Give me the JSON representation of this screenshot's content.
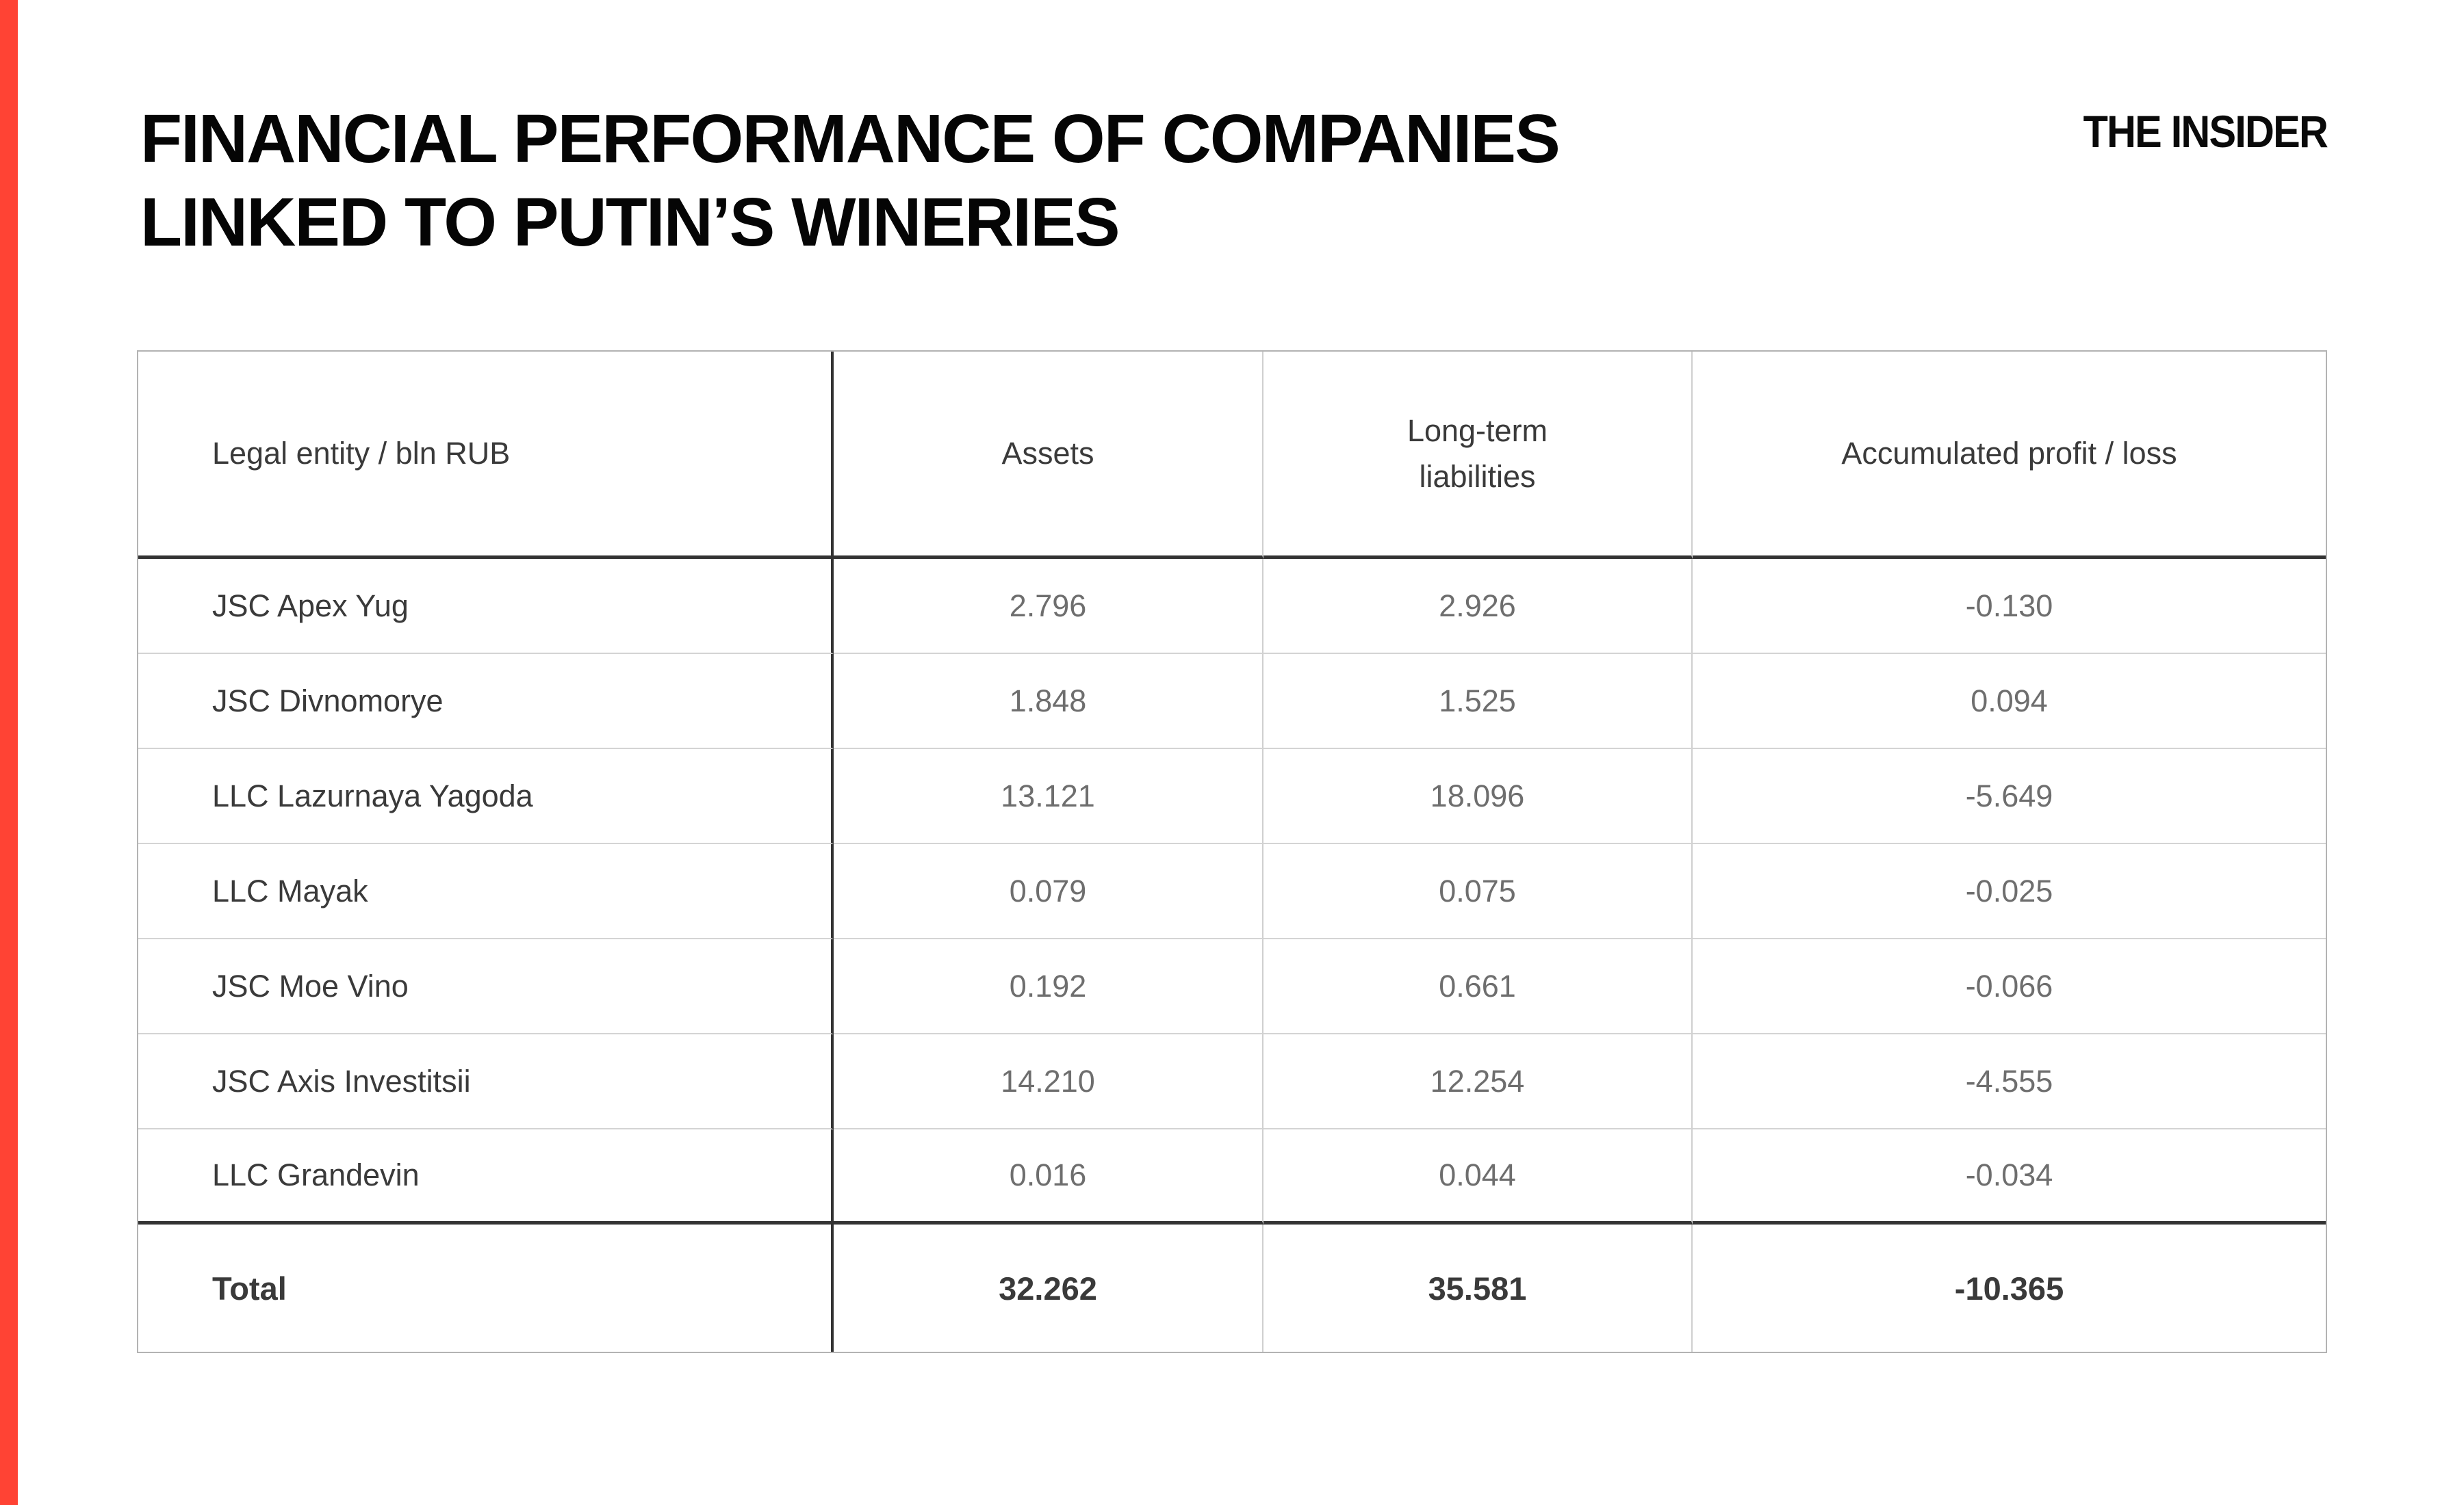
{
  "header": {
    "title_line1": "FINANCIAL PERFORMANCE OF COMPANIES",
    "title_line2": "LINKED TO PUTIN’S WINERIES",
    "logo": "THE INSIDER"
  },
  "colors": {
    "accent_red": "#ff4334",
    "dark_line": "#333333",
    "light_line": "#cfcfcf",
    "entity_text": "#3a3a3a",
    "number_text": "#6e6e6e"
  },
  "table": {
    "columns": [
      "Legal entity / bln RUB",
      "Assets",
      "Long-term liabilities",
      "Accumulated profit / loss"
    ],
    "rows": [
      {
        "name": "JSC Apex Yug",
        "assets": "2.796",
        "liabilities": "2.926",
        "profit": "-0.130"
      },
      {
        "name": "JSC Divnomorye",
        "assets": "1.848",
        "liabilities": "1.525",
        "profit": "0.094"
      },
      {
        "name": "LLC Lazurnaya Yagoda",
        "assets": "13.121",
        "liabilities": "18.096",
        "profit": "-5.649"
      },
      {
        "name": "LLC Mayak",
        "assets": "0.079",
        "liabilities": "0.075",
        "profit": "-0.025"
      },
      {
        "name": "JSC Moe Vino",
        "assets": "0.192",
        "liabilities": "0.661",
        "profit": "-0.066"
      },
      {
        "name": "JSC Axis Investitsii",
        "assets": "14.210",
        "liabilities": "12.254",
        "profit": "-4.555"
      },
      {
        "name": "LLC Grandevin",
        "assets": "0.016",
        "liabilities": "0.044",
        "profit": "-0.034"
      }
    ],
    "total": {
      "name": "Total",
      "assets": "32.262",
      "liabilities": "35.581",
      "profit": "-10.365"
    }
  },
  "chart_data": {
    "type": "table",
    "title": "FINANCIAL PERFORMANCE OF COMPANIES LINKED TO PUTIN’S WINERIES",
    "brand": "THE INSIDER",
    "units": "bln RUB",
    "columns": [
      "Legal entity / bln RUB",
      "Assets",
      "Long-term liabilities",
      "Accumulated profit / loss"
    ],
    "rows": [
      [
        "JSC Apex Yug",
        2.796,
        2.926,
        -0.13
      ],
      [
        "JSC Divnomorye",
        1.848,
        1.525,
        0.094
      ],
      [
        "LLC Lazurnaya Yagoda",
        13.121,
        18.096,
        -5.649
      ],
      [
        "LLC Mayak",
        0.079,
        0.075,
        -0.025
      ],
      [
        "JSC Moe Vino",
        0.192,
        0.661,
        -0.066
      ],
      [
        "JSC Axis Investitsii",
        14.21,
        12.254,
        -4.555
      ],
      [
        "LLC Grandevin",
        0.016,
        0.044,
        -0.034
      ]
    ],
    "total_row": [
      "Total",
      32.262,
      35.581,
      -10.365
    ]
  }
}
